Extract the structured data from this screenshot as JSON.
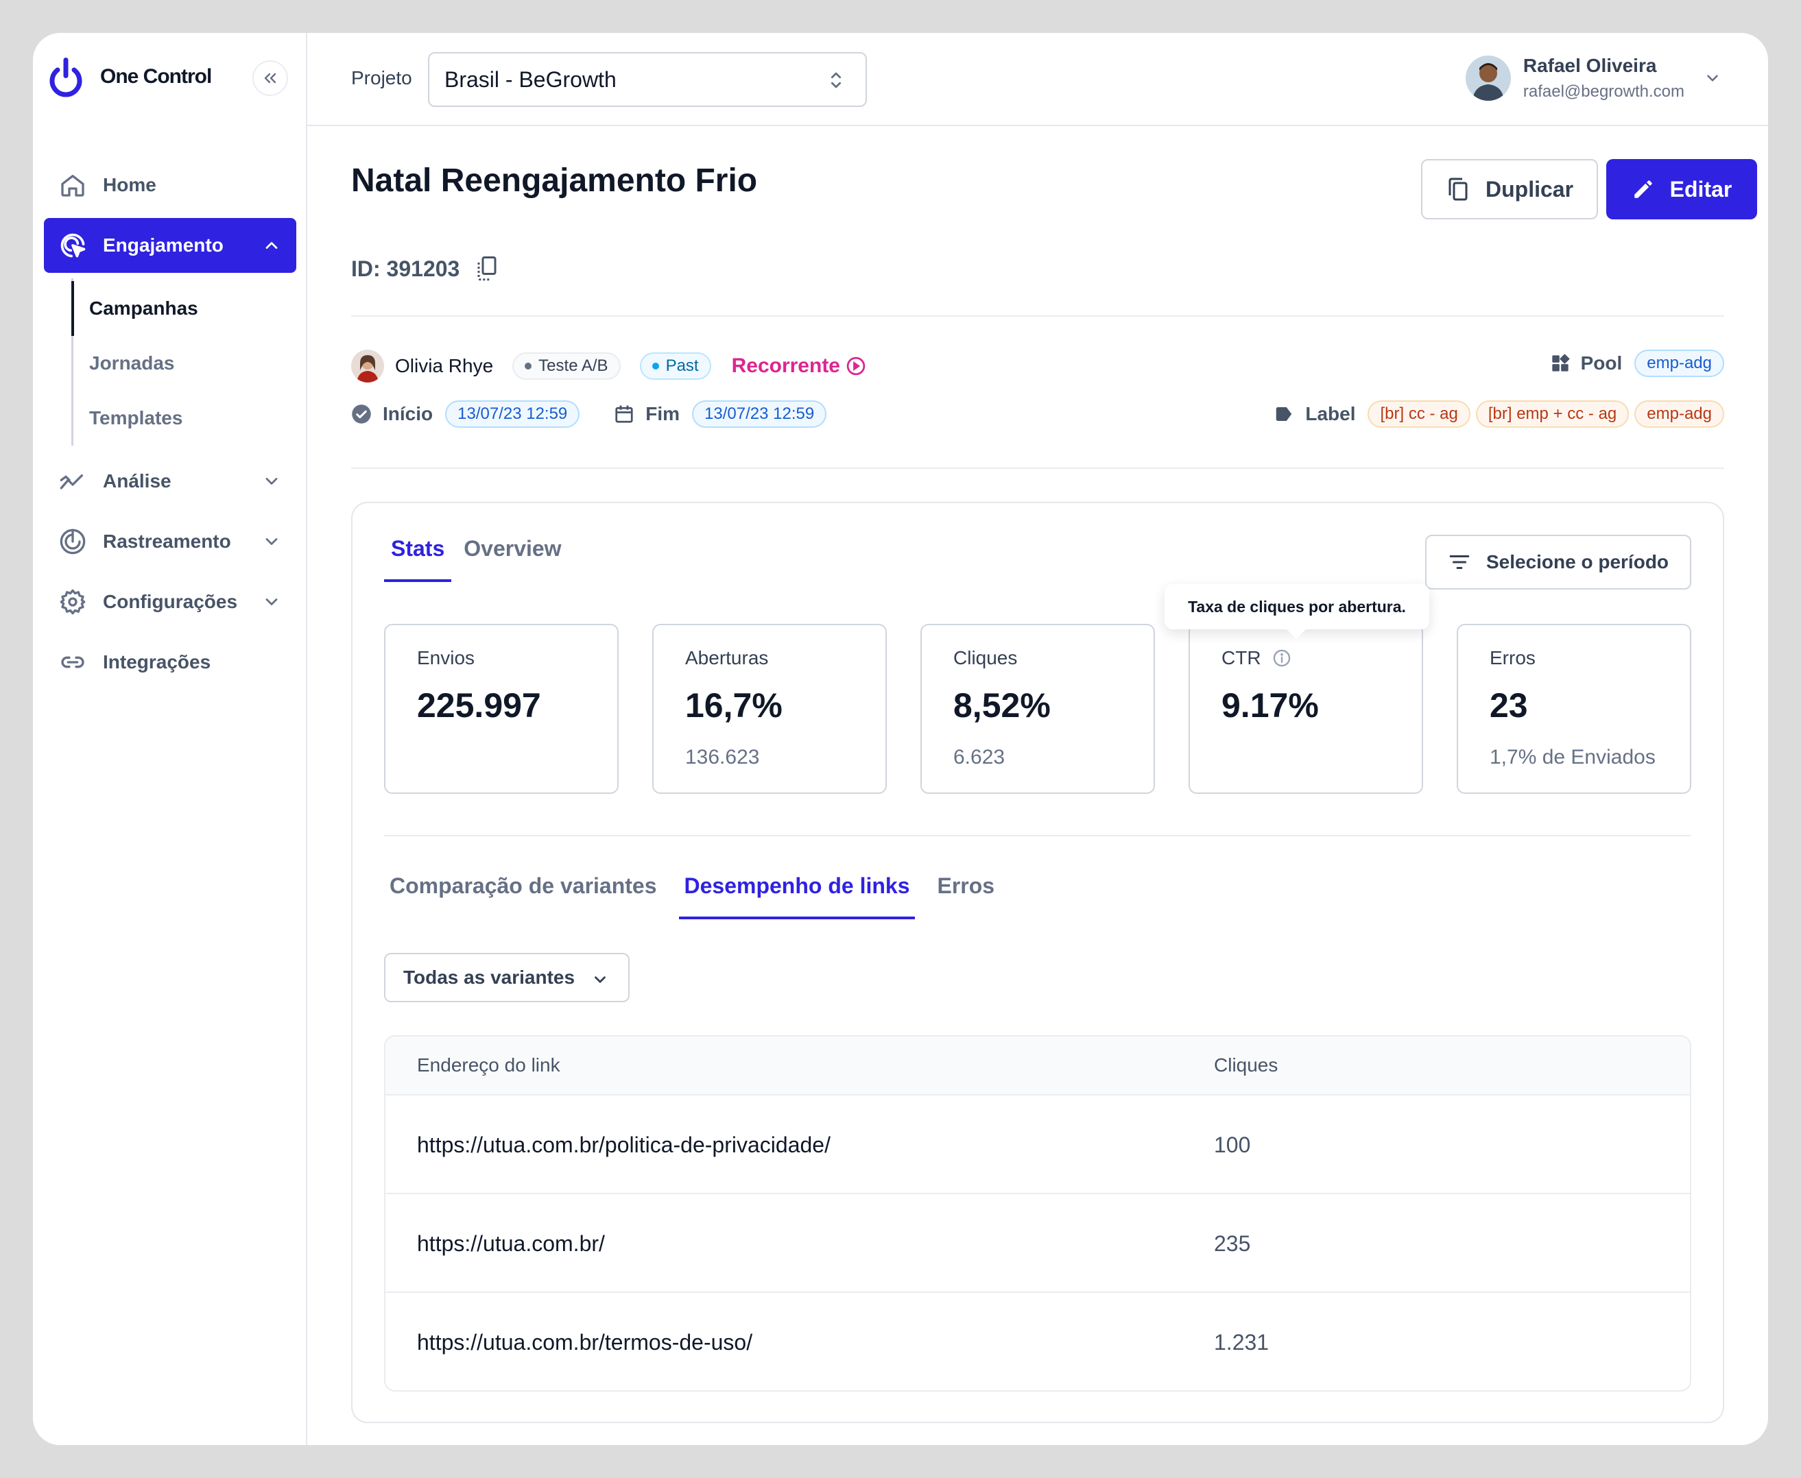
{
  "app": {
    "name": "One Control"
  },
  "sidebar": {
    "items": [
      {
        "label": "Home"
      },
      {
        "label": "Engajamento"
      },
      {
        "label": "Análise"
      },
      {
        "label": "Rastreamento"
      },
      {
        "label": "Configurações"
      },
      {
        "label": "Integrações"
      }
    ],
    "sub_items": [
      {
        "label": "Campanhas"
      },
      {
        "label": "Jornadas"
      },
      {
        "label": "Templates"
      }
    ]
  },
  "header": {
    "project_label": "Projeto",
    "project_value": "Brasil - BeGrowth",
    "user_name": "Rafael Oliveira",
    "user_email": "rafael@begrowth.com"
  },
  "campaign": {
    "title": "Natal Reengajamento Frio",
    "id": "ID: 391203",
    "duplicate_label": "Duplicar",
    "edit_label": "Editar",
    "owner": "Olivia Rhye",
    "type_badge": "Teste A/B",
    "status_badge": "Past",
    "recurrence": "Recorrente",
    "start_label": "Início",
    "start_date": "13/07/23 12:59",
    "end_label": "Fim",
    "end_date": "13/07/23 12:59",
    "pool_label": "Pool",
    "pool_value": "emp-adg",
    "label_label": "Label",
    "labels": [
      "[br] cc - ag",
      "[br] emp + cc - ag",
      "emp-adg"
    ]
  },
  "stats": {
    "tabs": [
      "Stats",
      "Overview"
    ],
    "period_button": "Selecione o período",
    "tooltip": "Taxa de cliques por abertura.",
    "cards": [
      {
        "label": "Envios",
        "value": "225.997",
        "sub": ""
      },
      {
        "label": "Aberturas",
        "value": "16,7%",
        "sub": "136.623"
      },
      {
        "label": "Cliques",
        "value": "8,52%",
        "sub": "6.623"
      },
      {
        "label": "CTR",
        "value": "9.17%",
        "sub": ""
      },
      {
        "label": "Erros",
        "value": "23",
        "sub": "1,7% de Enviados"
      }
    ]
  },
  "details": {
    "tabs": [
      "Comparação de variantes",
      "Desempenho de links",
      "Erros"
    ],
    "variant_select": "Todas as variantes",
    "table": {
      "columns": [
        "Endereço do link",
        "Cliques"
      ],
      "rows": [
        {
          "url": "https://utua.com.br/politica-de-privacidade/",
          "clicks": "100"
        },
        {
          "url": "https://utua.com.br/",
          "clicks": "235"
        },
        {
          "url": "https://utua.com.br/termos-de-uso/",
          "clicks": "1.231"
        }
      ]
    }
  },
  "colors": {
    "accent": "#2f22e0",
    "recurrence": "#dd2590"
  }
}
